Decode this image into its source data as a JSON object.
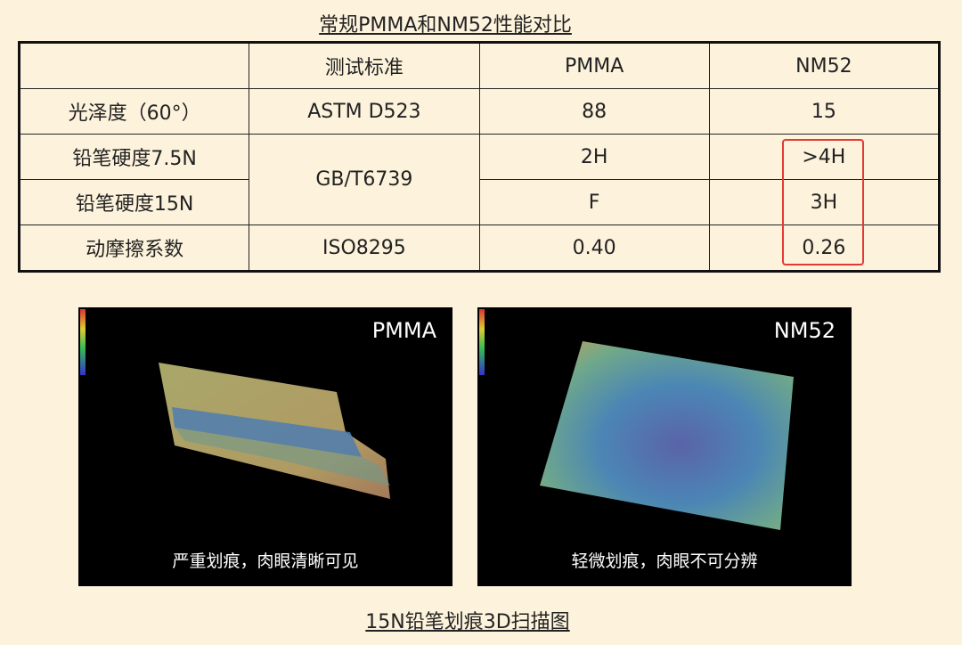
{
  "title": "常规PMMA和NM52性能对比",
  "table": {
    "header": [
      "测试标准",
      "PMMA",
      "NM52"
    ],
    "rows": [
      {
        "label": "光泽度（60°）",
        "standard": "ASTM D523",
        "pmma": "88",
        "nm52": "15"
      },
      {
        "label": "铅笔硬度7.5N",
        "standard": "GB/T6739",
        "pmma": "2H",
        "nm52": ">4H"
      },
      {
        "label": "铅笔硬度15N",
        "pmma": "F",
        "nm52": "3H"
      },
      {
        "label": "动摩擦系数",
        "standard": "ISO8295",
        "pmma": "0.40",
        "nm52": "0.26"
      }
    ]
  },
  "figures": [
    {
      "label": "PMMA",
      "caption": "严重划痕，肉眼清晰可见"
    },
    {
      "label": "NM52",
      "caption": "轻微划痕，肉眼不可分辨"
    }
  ],
  "figure_caption": "15N铅笔划痕3D扫描图"
}
